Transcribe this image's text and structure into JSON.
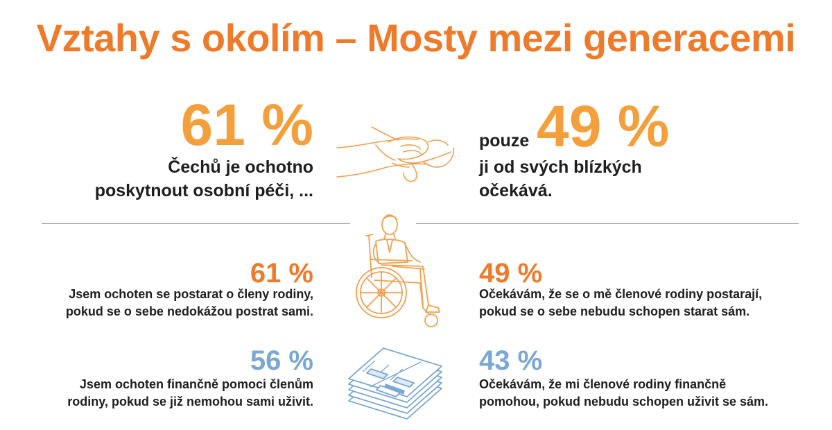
{
  "title": "Vztahy s okolím – Mosty mezi generacemi",
  "top": {
    "left": {
      "pct": "61 %",
      "line1": "Čechů je ochotno",
      "line2": "poskytnout osobní péči, ..."
    },
    "right": {
      "prefix": "pouze",
      "pct": "49 %",
      "line1": "ji od svých blízkých",
      "line2": "očekává."
    }
  },
  "stats": [
    {
      "pct": "61 %",
      "line1": "Jsem ochoten se postarat o členy rodiny,",
      "line2": "pokud se o sebe nedokážou postrat sami."
    },
    {
      "pct": "49 %",
      "line1": "Očekávám, že se o mě členové rodiny postarají,",
      "line2": "pokud se o sebe nebudu schopen starat sám."
    },
    {
      "pct": "56 %",
      "line1": "Jsem ochoten finančně pomoci členům",
      "line2": "rodiny, pokud se již nemohou sami uživit."
    },
    {
      "pct": "43 %",
      "line1": "Očekávám, že mi členové rodiny finančně",
      "line2": "pomohou, pokud nebudu schopen uživit se sám."
    }
  ],
  "icons": [
    "holding-hands-icon",
    "wheelchair-person-icon",
    "money-stack-icon"
  ],
  "colors": {
    "title": "#ee7b2b",
    "accent_orange": "#f3a03c",
    "accent_blue": "#7aa7d4"
  }
}
